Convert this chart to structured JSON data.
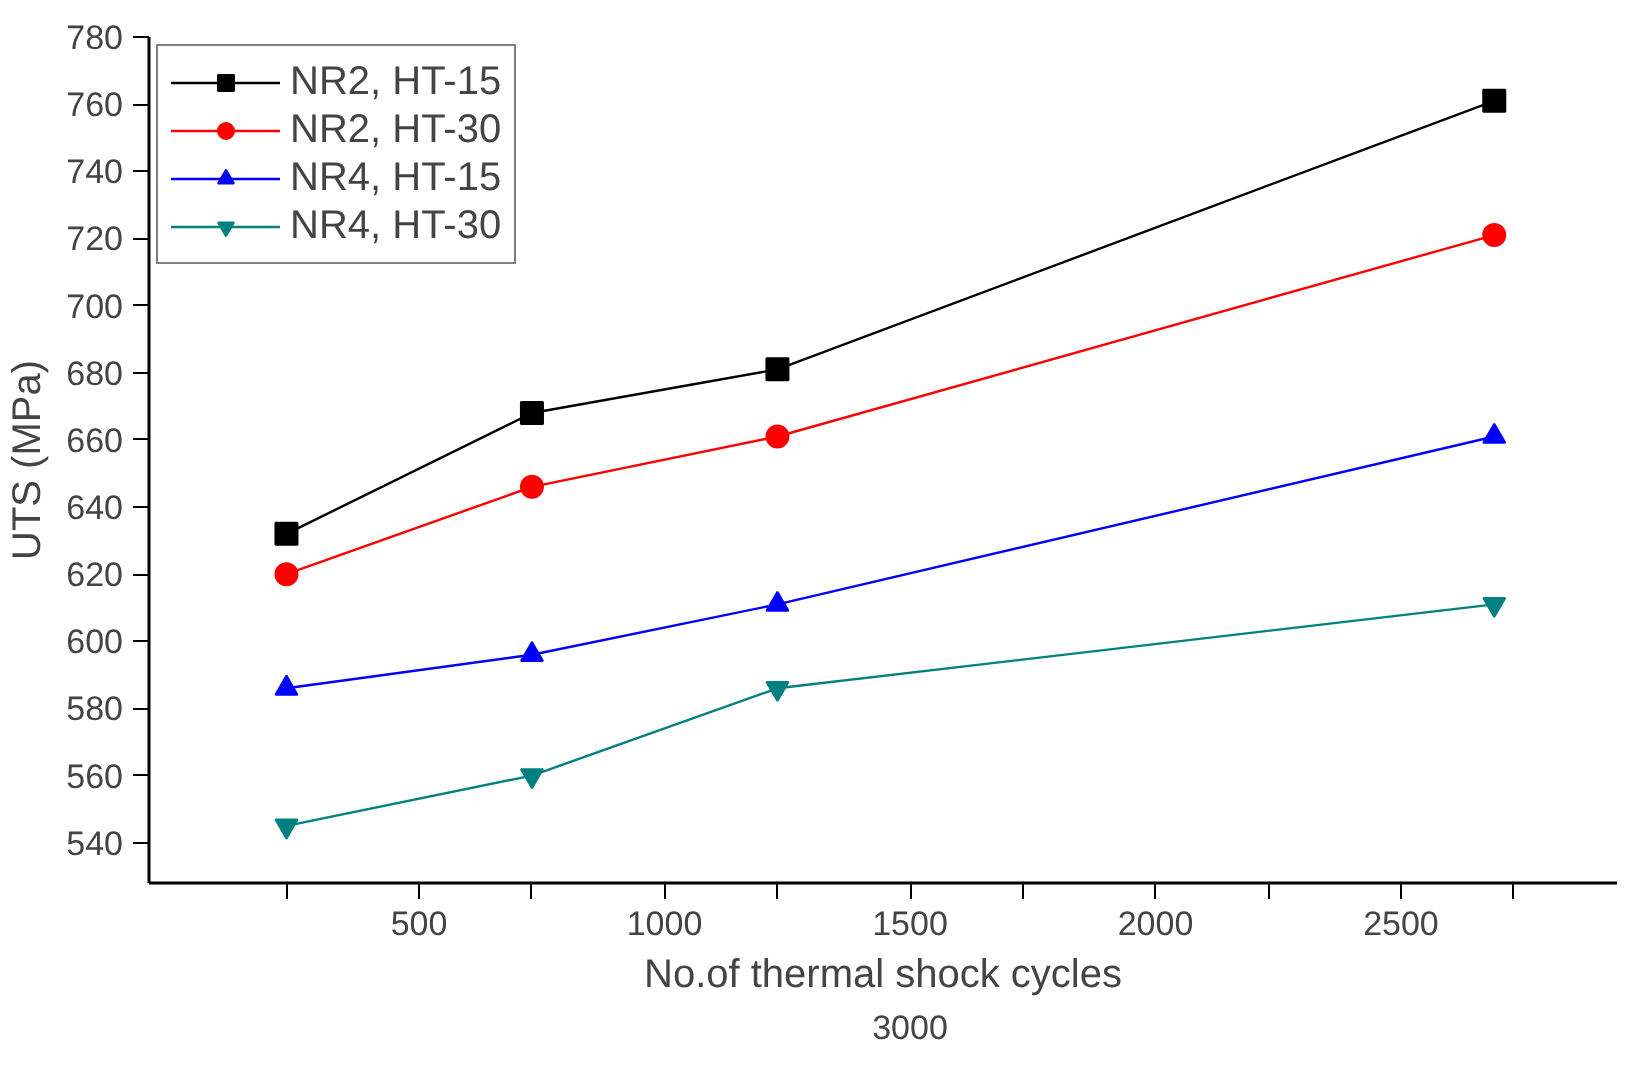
{
  "chart_data": {
    "type": "line",
    "xlabel": "No.of thermal shock cycles",
    "ylabel": "UTS (MPa)",
    "x": [
      230,
      730,
      1230,
      2690
    ],
    "series": [
      {
        "name": "NR2, HT-15",
        "color": "#000000",
        "marker": "square",
        "values": [
          632,
          668,
          681,
          761
        ]
      },
      {
        "name": "NR2, HT-30",
        "color": "#ff0000",
        "marker": "circle",
        "values": [
          620,
          646,
          661,
          721
        ]
      },
      {
        "name": "NR4, HT-15",
        "color": "#0000ff",
        "marker": "triangle",
        "values": [
          586,
          596,
          611,
          661
        ]
      },
      {
        "name": "NR4, HT-30",
        "color": "#008080",
        "marker": "triangle",
        "values": [
          545,
          560,
          586,
          611
        ]
      }
    ],
    "xlim": [
      -50,
      2940
    ],
    "ylim": [
      528,
      780
    ],
    "xticks": [
      {
        "value": 230,
        "label": null
      },
      500,
      {
        "value": 730,
        "label": null
      },
      1000,
      {
        "value": 1230,
        "label": null
      },
      1500,
      {
        "value": 1730,
        "label": null
      },
      2000,
      {
        "value": 2230,
        "label": null
      },
      2500,
      {
        "value": 2730,
        "label": null
      }
    ],
    "yticks": [
      540,
      560,
      580,
      600,
      620,
      640,
      660,
      680,
      700,
      720,
      740,
      760,
      780
    ],
    "annotations": [
      "3000"
    ],
    "grid": false,
    "legend": "top left"
  }
}
